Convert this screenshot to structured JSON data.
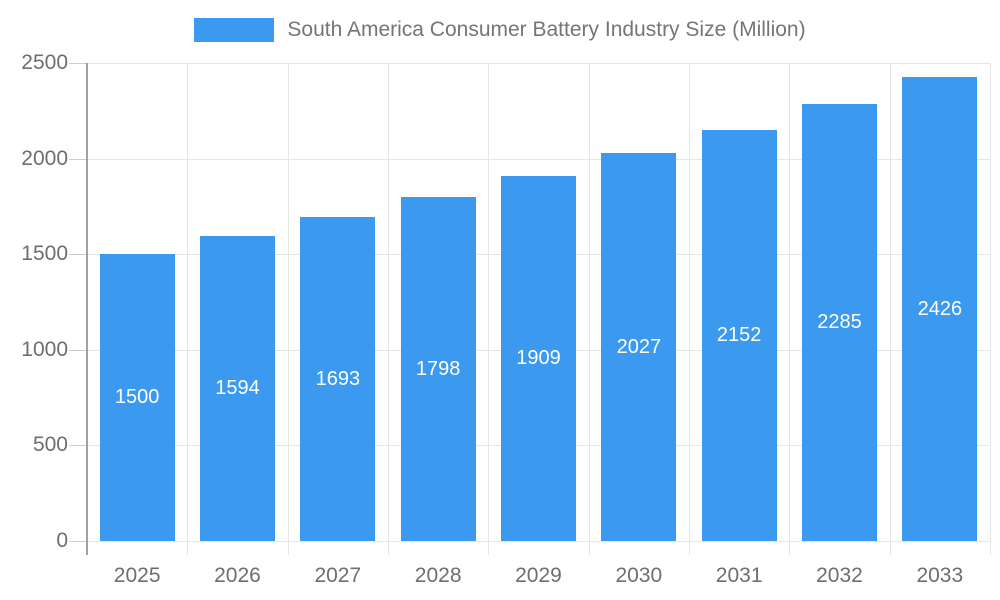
{
  "chart_data": {
    "type": "bar",
    "title": "South America Consumer Battery Industry Size (Million)",
    "categories": [
      "2025",
      "2026",
      "2027",
      "2028",
      "2029",
      "2030",
      "2031",
      "2032",
      "2033"
    ],
    "values": [
      1500,
      1594,
      1693,
      1798,
      1909,
      2027,
      2152,
      2285,
      2426
    ],
    "xlabel": "",
    "ylabel": "",
    "ylim": [
      0,
      2500
    ],
    "yticks": [
      0,
      500,
      1000,
      1500,
      2000,
      2500
    ],
    "grid": true,
    "legend_position": "top-center",
    "value_labels": "inside-center",
    "colors": {
      "bar": "#3B99F0",
      "bar_value_text": "#FFFFFF",
      "axis_text": "#6E6E6E",
      "legend_text": "#757575",
      "gridline": "#E6E6E6",
      "tick": "#CCCCCC",
      "axis_line": "#A0A0A0",
      "background": "#FFFFFF"
    }
  }
}
